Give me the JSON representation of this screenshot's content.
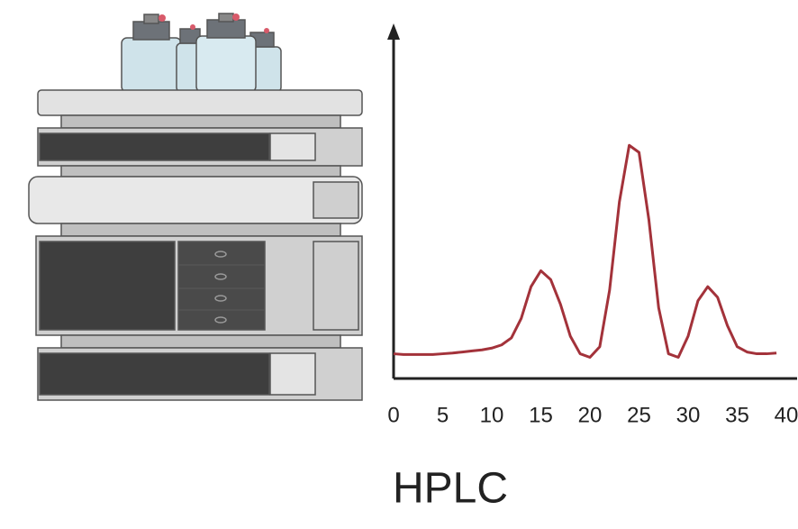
{
  "chart_data": {
    "type": "line",
    "title": "HPLC",
    "x": [
      0,
      1,
      2,
      3,
      4,
      5,
      6,
      7,
      8,
      9,
      10,
      11,
      12,
      13,
      14,
      15,
      16,
      17,
      18,
      19,
      20,
      21,
      22,
      23,
      24,
      25,
      26,
      27,
      28,
      29,
      30,
      31,
      32,
      33,
      34,
      35,
      36,
      37,
      38,
      39
    ],
    "series": [
      {
        "color": "#a3323a",
        "values": [
          7,
          6.8,
          6.8,
          6.8,
          6.8,
          7,
          7.2,
          7.5,
          7.8,
          8.1,
          8.6,
          9.5,
          11.5,
          17,
          26,
          30.5,
          28,
          21,
          12,
          7,
          6,
          9,
          25,
          50,
          66,
          64,
          45,
          20,
          7,
          6,
          12,
          22,
          26,
          23,
          15,
          9,
          7.5,
          7,
          7,
          7.2
        ]
      }
    ],
    "xlim": [
      0,
      40
    ],
    "xticks": [
      0,
      5,
      10,
      15,
      20,
      25,
      30,
      35,
      40
    ],
    "ylim": [
      0,
      100
    ]
  }
}
